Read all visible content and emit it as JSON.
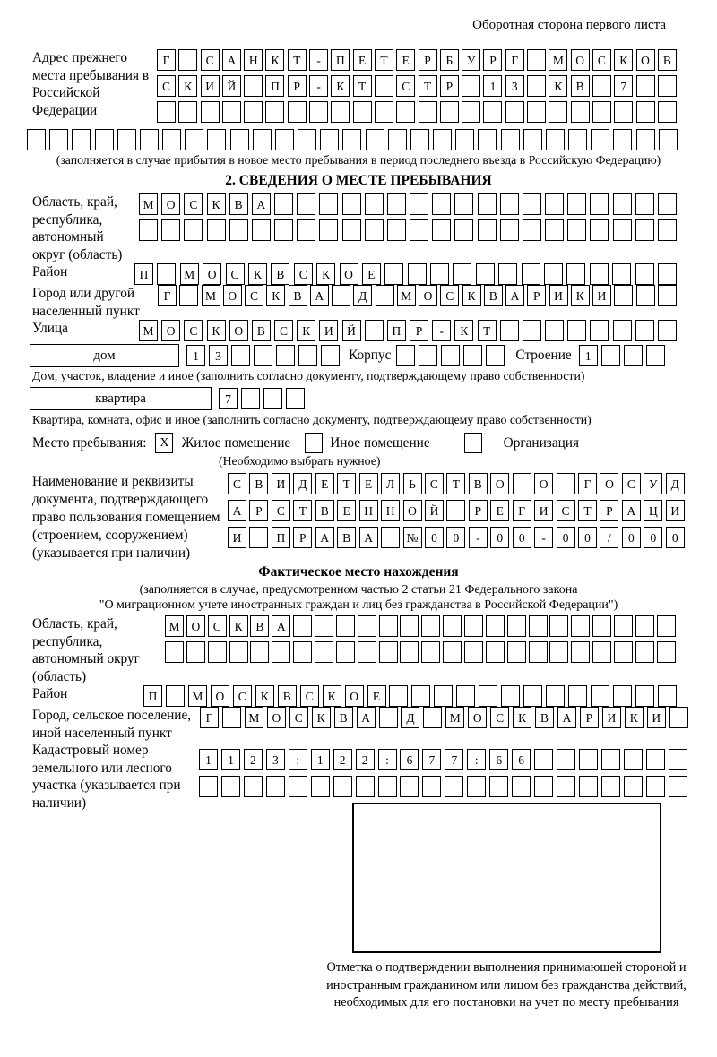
{
  "header": {
    "corner_note": "Оборотная сторона первого листа"
  },
  "prev_address": {
    "label": "Адрес прежнего места пребывания в Российской Федерации",
    "rows": [
      {
        "chars": "Г САНКТ-ПЕТЕРБУРГ МОСКОВ",
        "count": 24
      },
      {
        "chars": "СКИЙ ПР-КТ СТР 13 КВ 7",
        "count": 24
      },
      {
        "chars": "",
        "count": 24
      },
      {
        "chars": "",
        "count": 29
      }
    ],
    "note": "(заполняется в случае прибытия в новое место пребывания в период последнего въезда в Российскую Федерацию)"
  },
  "section2": {
    "title": "2. СВЕДЕНИЯ О МЕСТЕ ПРЕБЫВАНИЯ",
    "region": {
      "label": "Область, край, республика, автономный округ (область)",
      "rows": [
        {
          "chars": "МОСКВА",
          "count": 24
        },
        {
          "chars": "",
          "count": 24
        }
      ]
    },
    "district": {
      "label": "Район",
      "row": {
        "chars": "П МОСКВСКОЕ",
        "count": 24
      }
    },
    "city": {
      "label": "Город или другой населенный пункт",
      "row": {
        "chars": "Г МОСКВА Д МОСКВАРИКИ",
        "count": 24
      }
    },
    "street": {
      "label": "Улица",
      "row": {
        "chars": "МОСКОВСКИЙ ПР-КТ",
        "count": 24
      }
    },
    "house_line": {
      "house_box_label": "дом",
      "house_row": {
        "chars": "13",
        "count": 7
      },
      "korpus_label": "Корпус",
      "korpus_row": {
        "chars": "",
        "count": 5
      },
      "stroenie_label": "Строение",
      "stroenie_row": {
        "chars": "1",
        "count": 4
      },
      "note": "Дом, участок, владение и иное (заполнить согласно документу, подтверждающему право собственности)"
    },
    "apartment_line": {
      "box_label": "квартира",
      "row": {
        "chars": "7",
        "count": 4
      },
      "note": "Квартира, комната, офис и иное (заполнить согласно документу, подтверждающему право собственности)"
    },
    "stay_type": {
      "label": "Место пребывания:",
      "options": [
        {
          "label": "Жилое помещение",
          "mark": "X"
        },
        {
          "label": "Иное помещение",
          "mark": ""
        },
        {
          "label": "Организация",
          "mark": ""
        }
      ],
      "note": "(Необходимо выбрать нужное)"
    },
    "document": {
      "label": "Наименование и реквизиты документа, подтверждающего право пользования помещением (строением, сооружением) (указывается при наличии)",
      "rows": [
        {
          "chars": "СВИДЕТЕЛЬСТВО О ГОСУД",
          "count": 21
        },
        {
          "chars": "АРСТВЕННОЙ РЕГИСТРАЦИ",
          "count": 21
        },
        {
          "chars": "И ПРАВА №00-00-00/000",
          "count": 21
        }
      ]
    }
  },
  "actual_location": {
    "title": "Фактическое место нахождения",
    "note_line1": "(заполняется в случае, предусмотренном частью 2 статьи 21 Федерального закона",
    "note_line2": "\"О миграционном учете иностранных граждан и лиц без гражданства в Российской Федерации\")",
    "region": {
      "label": "Область, край, республика, автономный округ (область)",
      "rows": [
        {
          "chars": "МОСКВА",
          "count": 24
        },
        {
          "chars": "",
          "count": 24
        }
      ]
    },
    "district": {
      "label": "Район",
      "row": {
        "chars": "П МОСКВСКОЕ",
        "count": 24
      }
    },
    "city": {
      "label": "Город, сельское поселение, иной населенный пункт",
      "row": {
        "chars": "Г МОСКВА Д МОСКВАРИКИ",
        "count": 22
      }
    },
    "cadastre": {
      "label": "Кадастровый номер земельного или лесного участка (указывается при наличии)",
      "rows": [
        {
          "chars": "1123:122:677:66",
          "count": 22
        },
        {
          "chars": "",
          "count": 22
        }
      ]
    }
  },
  "stamp": {
    "note": "Отметка о подтверждении выполнения принимающей стороной и иностранным гражданином или лицом без гражданства действий, необходимых для его постановки на учет по месту пребывания"
  }
}
